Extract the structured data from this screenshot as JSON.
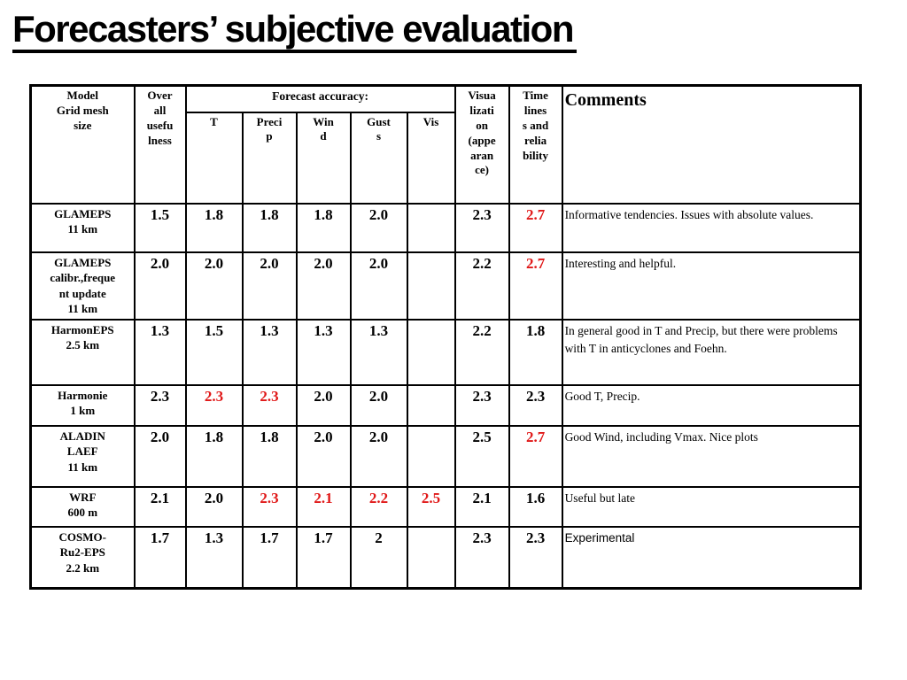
{
  "slide": {
    "title": "Forecasters’ subjective evaluation"
  },
  "colors": {
    "score_red": "#e01818",
    "text": "#000000",
    "background": "#ffffff"
  },
  "table": {
    "headers": {
      "model": "Model\nGrid mesh\nsize",
      "overall": "Over\nall\nusefu\nlness",
      "forecast_accuracy": "Forecast accuracy:",
      "accuracy_cols": [
        "T",
        "Preci\np",
        "Win\nd",
        "Gust\ns",
        "Vis"
      ],
      "visualization": "Visua\nlizati\non\n(appe\naran\nce)",
      "timeliness": "Time\nlines\ns and\nrelia\nbility",
      "comments": "Comments"
    },
    "rows": [
      {
        "model": "GLAMEPS\n11 km",
        "scores": [
          {
            "v": "1.5",
            "red": false
          },
          {
            "v": "1.8",
            "red": false
          },
          {
            "v": "1.8",
            "red": false
          },
          {
            "v": "1.8",
            "red": false
          },
          {
            "v": "2.0",
            "red": false
          },
          {
            "v": "",
            "red": false
          },
          {
            "v": "2.3",
            "red": false
          },
          {
            "v": "2.7",
            "red": true
          }
        ],
        "comment": "Informative tendencies. Issues with absolute values.",
        "comment_sans": false
      },
      {
        "model": "GLAMEPS\ncalibr.,freque\nnt update\n11 km",
        "scores": [
          {
            "v": "2.0",
            "red": false
          },
          {
            "v": "2.0",
            "red": false
          },
          {
            "v": "2.0",
            "red": false
          },
          {
            "v": "2.0",
            "red": false
          },
          {
            "v": "2.0",
            "red": false
          },
          {
            "v": "",
            "red": false
          },
          {
            "v": "2.2",
            "red": false
          },
          {
            "v": "2.7",
            "red": true
          }
        ],
        "comment": "Interesting and helpful.",
        "comment_sans": false
      },
      {
        "model": "HarmonEPS\n2.5 km",
        "scores": [
          {
            "v": "1.3",
            "red": false
          },
          {
            "v": "1.5",
            "red": false
          },
          {
            "v": "1.3",
            "red": false
          },
          {
            "v": "1.3",
            "red": false
          },
          {
            "v": "1.3",
            "red": false
          },
          {
            "v": "",
            "red": false
          },
          {
            "v": "2.2",
            "red": false
          },
          {
            "v": "1.8",
            "red": false
          }
        ],
        "comment": "In general good in T and Precip, but there were problems with T in anticyclones and Foehn.",
        "comment_sans": false
      },
      {
        "model": "Harmonie\n1 km",
        "scores": [
          {
            "v": "2.3",
            "red": false
          },
          {
            "v": "2.3",
            "red": true
          },
          {
            "v": "2.3",
            "red": true
          },
          {
            "v": "2.0",
            "red": false
          },
          {
            "v": "2.0",
            "red": false
          },
          {
            "v": "",
            "red": false
          },
          {
            "v": "2.3",
            "red": false
          },
          {
            "v": "2.3",
            "red": false
          }
        ],
        "comment": "Good T, Precip.",
        "comment_sans": false
      },
      {
        "model": "ALADIN\nLAEF\n11 km",
        "scores": [
          {
            "v": "2.0",
            "red": false
          },
          {
            "v": "1.8",
            "red": false
          },
          {
            "v": "1.8",
            "red": false
          },
          {
            "v": "2.0",
            "red": false
          },
          {
            "v": "2.0",
            "red": false
          },
          {
            "v": "",
            "red": false
          },
          {
            "v": "2.5",
            "red": false
          },
          {
            "v": "2.7",
            "red": true
          }
        ],
        "comment": "Good Wind, including Vmax. Nice plots",
        "comment_sans": false
      },
      {
        "model": "WRF\n600 m",
        "scores": [
          {
            "v": "2.1",
            "red": false
          },
          {
            "v": "2.0",
            "red": false
          },
          {
            "v": "2.3",
            "red": true
          },
          {
            "v": "2.1",
            "red": true
          },
          {
            "v": "2.2",
            "red": true
          },
          {
            "v": "2.5",
            "red": true
          },
          {
            "v": "2.1",
            "red": false
          },
          {
            "v": "1.6",
            "red": false
          }
        ],
        "comment": "Useful but late",
        "comment_sans": false
      },
      {
        "model": "COSMO-\nRu2-EPS\n2.2 km",
        "scores": [
          {
            "v": "1.7",
            "red": false
          },
          {
            "v": "1.3",
            "red": false
          },
          {
            "v": "1.7",
            "red": false
          },
          {
            "v": "1.7",
            "red": false
          },
          {
            "v": "2",
            "red": false
          },
          {
            "v": "",
            "red": false
          },
          {
            "v": "2.3",
            "red": false
          },
          {
            "v": "2.3",
            "red": false
          }
        ],
        "comment": "Experimental",
        "comment_sans": true
      }
    ]
  }
}
